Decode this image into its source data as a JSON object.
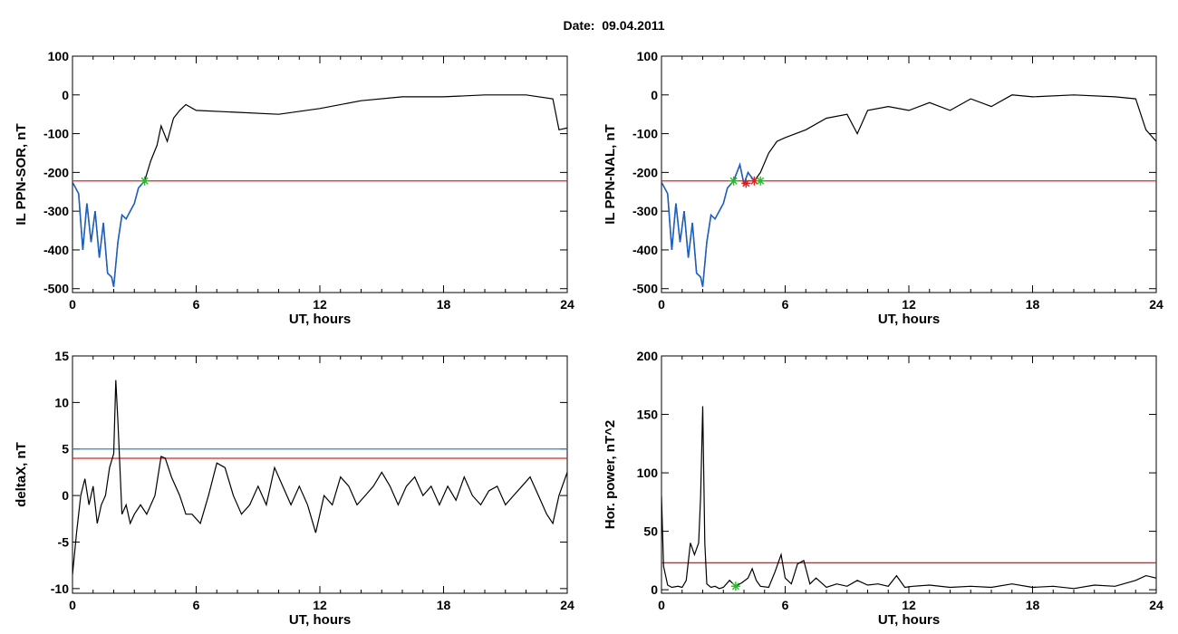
{
  "title": "Date:  09.04.2011",
  "colors": {
    "trace": "#000000",
    "blue": "#1f5fbf",
    "red": "#e02020",
    "teal": "#2a8fb0",
    "green": "#22c022"
  },
  "chart_data": [
    {
      "type": "line",
      "xlabel": "UT, hours",
      "ylabel": "IL PPN-SOR, nT",
      "xlim": [
        0,
        24
      ],
      "ylim": [
        -510,
        100
      ],
      "xticks": [
        0,
        6,
        12,
        18,
        24
      ],
      "yticks": [
        100,
        0,
        -100,
        -200,
        -300,
        -400,
        -500
      ],
      "threshold": -222,
      "series": [
        {
          "color": "black",
          "x": [
            0,
            0.3,
            0.5,
            0.7,
            0.9,
            1.1,
            1.3,
            1.5,
            1.7,
            1.9,
            2.0,
            2.2,
            2.4,
            2.6,
            2.8,
            3.0,
            3.2,
            3.5,
            3.8,
            4.1,
            4.3,
            4.6,
            4.9,
            5.2,
            5.5,
            6,
            8,
            10,
            12,
            14,
            16,
            18,
            20,
            22,
            23.3,
            23.6,
            24
          ],
          "y": [
            -225,
            -255,
            -400,
            -280,
            -380,
            -300,
            -420,
            -330,
            -460,
            -470,
            -495,
            -380,
            -310,
            -320,
            -300,
            -280,
            -240,
            -222,
            -170,
            -130,
            -80,
            -120,
            -60,
            -40,
            -25,
            -40,
            -45,
            -50,
            -35,
            -15,
            -5,
            -5,
            0,
            0,
            -10,
            -90,
            -85
          ]
        }
      ],
      "blue_segment": {
        "x": [
          0,
          0.3,
          0.5,
          0.7,
          0.9,
          1.1,
          1.3,
          1.5,
          1.7,
          1.9,
          2.0,
          2.2,
          2.4,
          2.6,
          2.8,
          3.0,
          3.2,
          3.5
        ],
        "y": [
          -225,
          -255,
          -400,
          -280,
          -380,
          -300,
          -420,
          -330,
          -460,
          -470,
          -495,
          -380,
          -310,
          -320,
          -300,
          -280,
          -240,
          -222
        ]
      },
      "markers": [
        {
          "x": 3.5,
          "y": -222,
          "color": "green"
        }
      ]
    },
    {
      "type": "line",
      "xlabel": "UT, hours",
      "ylabel": "IL PPN-NAL, nT",
      "xlim": [
        0,
        24
      ],
      "ylim": [
        -510,
        100
      ],
      "xticks": [
        0,
        6,
        12,
        18,
        24
      ],
      "yticks": [
        100,
        0,
        -100,
        -200,
        -300,
        -400,
        -500
      ],
      "threshold": -222,
      "series": [
        {
          "color": "black",
          "x": [
            0,
            0.3,
            0.5,
            0.7,
            0.9,
            1.1,
            1.3,
            1.5,
            1.7,
            1.9,
            2.0,
            2.2,
            2.4,
            2.6,
            2.8,
            3.0,
            3.2,
            3.5,
            3.8,
            4.0,
            4.2,
            4.5,
            4.8,
            5.2,
            5.6,
            6,
            7,
            8,
            9,
            9.5,
            10,
            11,
            12,
            13,
            14,
            15,
            16,
            17,
            18,
            20,
            22,
            23.0,
            23.5,
            24
          ],
          "y": [
            -225,
            -255,
            -400,
            -280,
            -380,
            -300,
            -420,
            -330,
            -460,
            -470,
            -495,
            -380,
            -310,
            -320,
            -300,
            -280,
            -240,
            -222,
            -180,
            -230,
            -200,
            -222,
            -200,
            -150,
            -120,
            -110,
            -90,
            -60,
            -50,
            -100,
            -40,
            -30,
            -40,
            -20,
            -40,
            -10,
            -30,
            0,
            -5,
            0,
            -5,
            -10,
            -90,
            -120
          ]
        }
      ],
      "blue_segment": {
        "x": [
          0,
          0.3,
          0.5,
          0.7,
          0.9,
          1.1,
          1.3,
          1.5,
          1.7,
          1.9,
          2.0,
          2.2,
          2.4,
          2.6,
          2.8,
          3.0,
          3.2,
          3.5,
          3.8,
          4.0,
          4.2,
          4.5
        ],
        "y": [
          -225,
          -255,
          -400,
          -280,
          -380,
          -300,
          -420,
          -330,
          -460,
          -470,
          -495,
          -380,
          -310,
          -320,
          -300,
          -280,
          -240,
          -222,
          -180,
          -230,
          -200,
          -222
        ]
      },
      "markers": [
        {
          "x": 3.5,
          "y": -222,
          "color": "green"
        },
        {
          "x": 4.1,
          "y": -228,
          "color": "red"
        },
        {
          "x": 4.5,
          "y": -222,
          "color": "red"
        },
        {
          "x": 4.8,
          "y": -222,
          "color": "green"
        }
      ]
    },
    {
      "type": "line",
      "xlabel": "UT, hours",
      "ylabel": "deltaX, nT",
      "xlim": [
        0,
        24
      ],
      "ylim": [
        -10.5,
        15
      ],
      "xticks": [
        0,
        6,
        12,
        18,
        24
      ],
      "yticks": [
        15,
        10,
        5,
        0,
        -5,
        -10
      ],
      "threshold": 4,
      "threshold2": 5,
      "series": [
        {
          "color": "black",
          "x": [
            0,
            0.2,
            0.4,
            0.6,
            0.8,
            1.0,
            1.2,
            1.4,
            1.6,
            1.8,
            2.0,
            2.1,
            2.2,
            2.4,
            2.6,
            2.8,
            3.0,
            3.3,
            3.6,
            4.0,
            4.3,
            4.5,
            4.8,
            5.2,
            5.5,
            5.8,
            6.2,
            6.6,
            7.0,
            7.4,
            7.8,
            8.2,
            8.6,
            9.0,
            9.4,
            9.8,
            10.2,
            10.6,
            11.0,
            11.4,
            11.8,
            12.2,
            12.6,
            13.0,
            13.4,
            13.8,
            14.2,
            14.6,
            15.0,
            15.4,
            15.8,
            16.2,
            16.6,
            17.0,
            17.4,
            17.8,
            18.2,
            18.6,
            19.0,
            19.4,
            19.8,
            20.2,
            20.6,
            21.0,
            21.4,
            21.8,
            22.2,
            22.6,
            23.0,
            23.3,
            23.6,
            24
          ],
          "y": [
            -8.5,
            -4,
            0,
            1.8,
            -1,
            1,
            -3,
            -1,
            0,
            3,
            4.5,
            12.4,
            8,
            -2,
            -1,
            -3,
            -2,
            -1,
            -2,
            0,
            4.2,
            4,
            2,
            0,
            -2,
            -2,
            -3,
            0,
            3.5,
            3,
            0,
            -2,
            -1,
            1,
            -1,
            3,
            1,
            -1,
            1,
            -1,
            -4,
            0,
            -1,
            2,
            1,
            -1,
            0,
            1,
            2.5,
            1,
            -1,
            1,
            2,
            0,
            1,
            -1,
            1,
            -0.5,
            2,
            0,
            -1,
            0.5,
            1,
            -1,
            0,
            1,
            2,
            0,
            -2,
            -3,
            0,
            2.5
          ]
        }
      ]
    },
    {
      "type": "line",
      "xlabel": "UT, hours",
      "ylabel": "Hor. power, nT^2",
      "xlim": [
        0,
        24
      ],
      "ylim": [
        -3,
        200
      ],
      "xticks": [
        0,
        6,
        12,
        18,
        24
      ],
      "yticks": [
        200,
        150,
        100,
        50,
        0
      ],
      "threshold": 23,
      "series": [
        {
          "color": "black",
          "x": [
            0,
            0.1,
            0.3,
            0.5,
            0.8,
            1.0,
            1.2,
            1.4,
            1.6,
            1.8,
            1.9,
            2.0,
            2.1,
            2.2,
            2.4,
            2.6,
            2.8,
            3.0,
            3.3,
            3.6,
            3.9,
            4.2,
            4.4,
            4.6,
            4.8,
            5.2,
            5.5,
            5.8,
            6.0,
            6.3,
            6.6,
            6.9,
            7.2,
            7.5,
            8.0,
            8.5,
            9.0,
            9.5,
            10.0,
            10.5,
            11.0,
            11.4,
            11.8,
            12.2,
            13.0,
            14.0,
            15.0,
            16.0,
            17.0,
            18.0,
            19.0,
            20.0,
            21.0,
            22.0,
            23.0,
            23.5,
            24
          ],
          "y": [
            80,
            20,
            4,
            2,
            3,
            2,
            8,
            40,
            30,
            40,
            80,
            157,
            40,
            5,
            2,
            3,
            1,
            2,
            8,
            3,
            6,
            10,
            18,
            8,
            3,
            2,
            15,
            30,
            10,
            5,
            22,
            25,
            5,
            10,
            2,
            5,
            3,
            8,
            4,
            5,
            3,
            12,
            2,
            3,
            4,
            2,
            3,
            2,
            5,
            2,
            3,
            1,
            4,
            3,
            8,
            12,
            10
          ]
        }
      ],
      "markers": [
        {
          "x": 3.6,
          "y": 3,
          "color": "green"
        }
      ]
    }
  ]
}
